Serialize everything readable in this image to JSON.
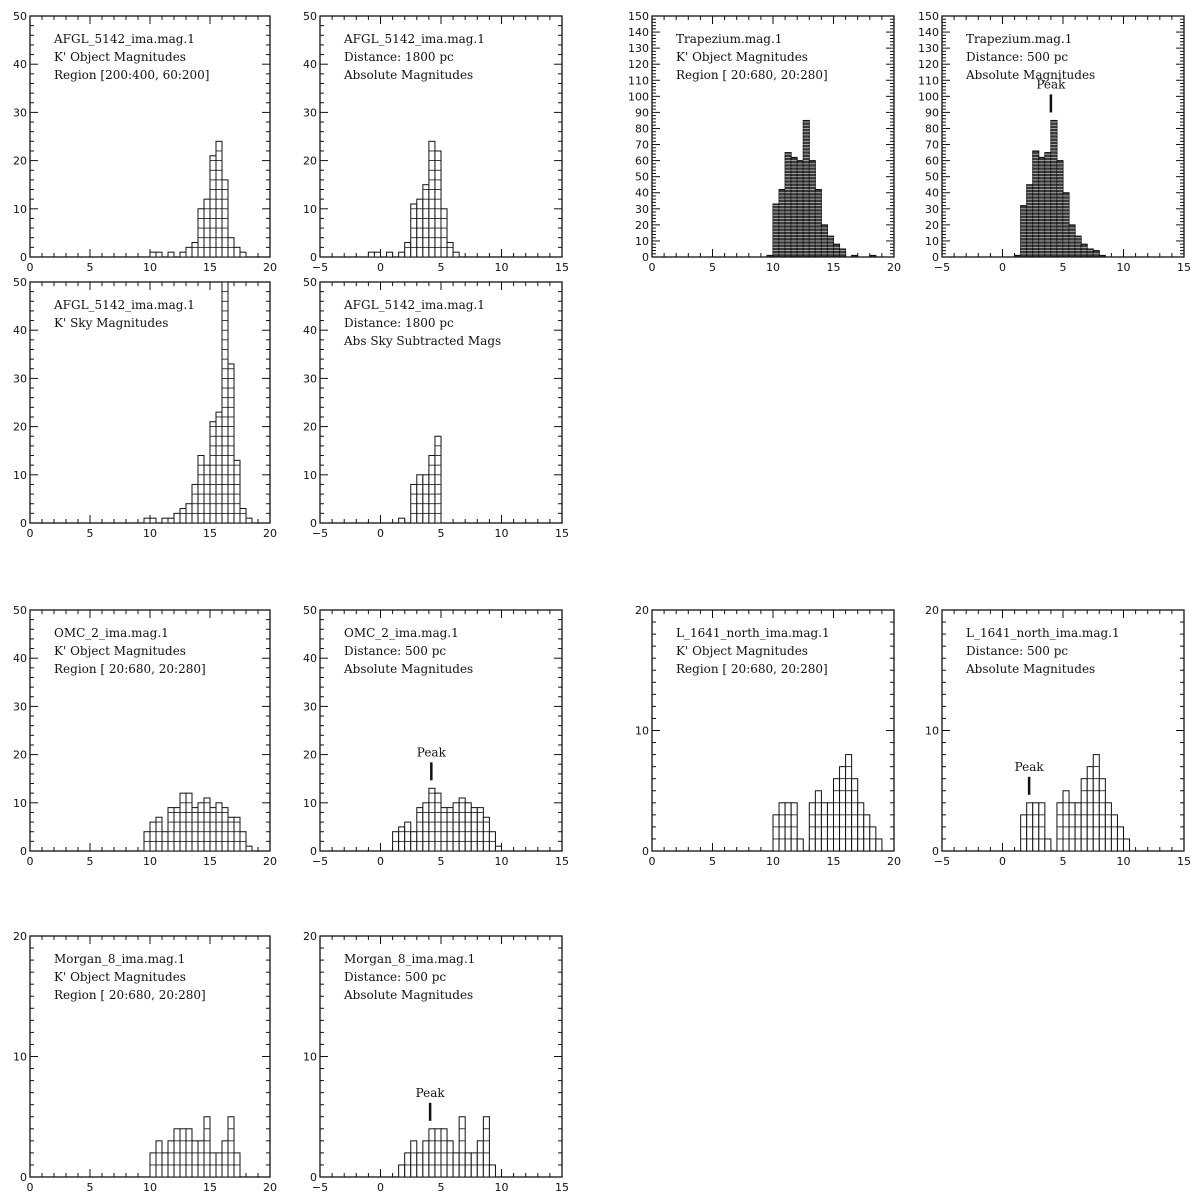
{
  "chart_data": [
    {
      "type": "bar",
      "lines": [
        "AFGL_5142_ima.mag.1",
        "K' Object Magnitudes",
        "Region [200:400, 60:200]"
      ],
      "xlim": [
        0,
        20
      ],
      "xticks": [
        0,
        5,
        10,
        15,
        20
      ],
      "ylim": [
        0,
        50
      ],
      "yticks": [
        0,
        10,
        20,
        30,
        40,
        50
      ],
      "cell": 2,
      "bins": [
        [
          10,
          1
        ],
        [
          10.5,
          1
        ],
        [
          11.5,
          1
        ],
        [
          12.5,
          1
        ],
        [
          13,
          2
        ],
        [
          13.5,
          3
        ],
        [
          14,
          10
        ],
        [
          14.5,
          12
        ],
        [
          15,
          21
        ],
        [
          15.5,
          24
        ],
        [
          16,
          16
        ],
        [
          16.5,
          4
        ],
        [
          17,
          2
        ],
        [
          17.5,
          1
        ]
      ]
    },
    {
      "type": "bar",
      "lines": [
        "AFGL_5142_ima.mag.1",
        "Distance: 1800  pc",
        "Absolute Magnitudes"
      ],
      "xlim": [
        -5,
        15
      ],
      "xticks": [
        -5,
        0,
        5,
        10,
        15
      ],
      "ylim": [
        0,
        50
      ],
      "yticks": [
        0,
        10,
        20,
        30,
        40,
        50
      ],
      "cell": 2,
      "bins": [
        [
          -1,
          1
        ],
        [
          -0.5,
          1
        ],
        [
          0.5,
          1
        ],
        [
          1.5,
          1
        ],
        [
          2,
          3
        ],
        [
          2.5,
          11
        ],
        [
          3,
          12
        ],
        [
          3.5,
          15
        ],
        [
          4,
          24
        ],
        [
          4.5,
          22
        ],
        [
          5,
          10
        ],
        [
          5.5,
          3
        ],
        [
          6,
          1
        ]
      ]
    },
    {
      "type": "bar",
      "lines": [
        "Trapezium.mag.1",
        "K' Object Magnitudes",
        "Region [ 20:680, 20:280]"
      ],
      "xlim": [
        0,
        20
      ],
      "xticks": [
        0,
        5,
        10,
        15,
        20
      ],
      "ylim": [
        0,
        150
      ],
      "yticks": [
        0,
        10,
        20,
        30,
        40,
        50,
        60,
        70,
        80,
        90,
        100,
        110,
        120,
        130,
        140,
        150
      ],
      "cell": 2,
      "dense": true,
      "bins": [
        [
          9.5,
          1
        ],
        [
          10,
          33
        ],
        [
          10.5,
          42
        ],
        [
          11,
          65
        ],
        [
          11.5,
          62
        ],
        [
          12,
          60
        ],
        [
          12.5,
          85
        ],
        [
          13,
          60
        ],
        [
          13.5,
          42
        ],
        [
          14,
          20
        ],
        [
          14.5,
          13
        ],
        [
          15,
          8
        ],
        [
          15.5,
          5
        ],
        [
          16.5,
          1
        ],
        [
          18,
          1
        ]
      ]
    },
    {
      "type": "bar",
      "lines": [
        "Trapezium.mag.1",
        "Distance: 500    pc",
        "Absolute Magnitudes"
      ],
      "xlim": [
        -5,
        15
      ],
      "xticks": [
        -5,
        0,
        5,
        10,
        15
      ],
      "ylim": [
        0,
        150
      ],
      "yticks": [
        0,
        10,
        20,
        30,
        40,
        50,
        60,
        70,
        80,
        90,
        100,
        110,
        120,
        130,
        140,
        150
      ],
      "cell": 2,
      "dense": true,
      "bins": [
        [
          1,
          1
        ],
        [
          1.5,
          32
        ],
        [
          2,
          45
        ],
        [
          2.5,
          66
        ],
        [
          3,
          62
        ],
        [
          3.5,
          65
        ],
        [
          4,
          85
        ],
        [
          4.5,
          60
        ],
        [
          5,
          40
        ],
        [
          5.5,
          20
        ],
        [
          6,
          13
        ],
        [
          6.5,
          8
        ],
        [
          7,
          5
        ],
        [
          7.5,
          4
        ],
        [
          8,
          1
        ]
      ],
      "peak": {
        "label": "Peak",
        "x": 4
      }
    },
    {
      "type": "bar",
      "lines": [
        "AFGL_5142_ima.mag.1",
        "K' Sky Magnitudes"
      ],
      "xlim": [
        0,
        20
      ],
      "xticks": [
        0,
        5,
        10,
        15,
        20
      ],
      "ylim": [
        0,
        50
      ],
      "yticks": [
        0,
        10,
        20,
        30,
        40,
        50
      ],
      "cell": 2,
      "bins": [
        [
          9.5,
          1
        ],
        [
          10,
          1
        ],
        [
          11,
          1
        ],
        [
          11.5,
          1
        ],
        [
          12,
          2
        ],
        [
          12.5,
          3
        ],
        [
          13,
          4
        ],
        [
          13.5,
          8
        ],
        [
          14,
          14
        ],
        [
          14.5,
          12
        ],
        [
          15,
          21
        ],
        [
          15.5,
          23
        ],
        [
          16,
          50
        ],
        [
          16.5,
          33
        ],
        [
          17,
          13
        ],
        [
          17.5,
          3
        ],
        [
          18,
          1
        ]
      ]
    },
    {
      "type": "bar",
      "lines": [
        "AFGL_5142_ima.mag.1",
        "Distance: 1800  pc",
        "Abs Sky Subtracted Mags"
      ],
      "xlim": [
        -5,
        15
      ],
      "xticks": [
        -5,
        0,
        5,
        10,
        15
      ],
      "ylim": [
        0,
        50
      ],
      "yticks": [
        0,
        10,
        20,
        30,
        40,
        50
      ],
      "cell": 2,
      "bins": [
        [
          1.5,
          1
        ],
        [
          2.5,
          8
        ],
        [
          3,
          10
        ],
        [
          3.5,
          10
        ],
        [
          4,
          14
        ],
        [
          4.5,
          18
        ]
      ]
    },
    {
      "type": "bar",
      "lines": [
        "OMC_2_ima.mag.1",
        "K' Object Magnitudes",
        "Region [ 20:680, 20:280]"
      ],
      "xlim": [
        0,
        20
      ],
      "xticks": [
        0,
        5,
        10,
        15,
        20
      ],
      "ylim": [
        0,
        50
      ],
      "yticks": [
        0,
        10,
        20,
        30,
        40,
        50
      ],
      "cell": 2,
      "bins": [
        [
          9.5,
          4
        ],
        [
          10,
          6
        ],
        [
          10.5,
          7
        ],
        [
          11,
          4
        ],
        [
          11.5,
          9
        ],
        [
          12,
          9
        ],
        [
          12.5,
          12
        ],
        [
          13,
          12
        ],
        [
          13.5,
          9
        ],
        [
          14,
          10
        ],
        [
          14.5,
          11
        ],
        [
          15,
          9
        ],
        [
          15.5,
          10
        ],
        [
          16,
          9
        ],
        [
          16.5,
          7
        ],
        [
          17,
          7
        ],
        [
          17.5,
          4
        ],
        [
          18,
          1
        ]
      ]
    },
    {
      "type": "bar",
      "lines": [
        "OMC_2_ima.mag.1",
        "Distance: 500    pc",
        "Absolute Magnitudes"
      ],
      "xlim": [
        -5,
        15
      ],
      "xticks": [
        -5,
        0,
        5,
        10,
        15
      ],
      "ylim": [
        0,
        50
      ],
      "yticks": [
        0,
        10,
        20,
        30,
        40,
        50
      ],
      "cell": 2,
      "bins": [
        [
          1,
          4
        ],
        [
          1.5,
          5
        ],
        [
          2,
          6
        ],
        [
          2.5,
          4
        ],
        [
          3,
          9
        ],
        [
          3.5,
          10
        ],
        [
          4,
          13
        ],
        [
          4.5,
          12
        ],
        [
          5,
          9
        ],
        [
          5.5,
          9
        ],
        [
          6,
          10
        ],
        [
          6.5,
          11
        ],
        [
          7,
          10
        ],
        [
          7.5,
          9
        ],
        [
          8,
          9
        ],
        [
          8.5,
          7
        ],
        [
          9,
          4
        ],
        [
          9.5,
          1
        ]
      ],
      "peak": {
        "label": "Peak",
        "x": 4.2
      }
    },
    {
      "type": "bar",
      "lines": [
        "L_1641_north_ima.mag.1",
        "K' Object Magnitudes",
        "Region [ 20:680, 20:280]"
      ],
      "xlim": [
        0,
        20
      ],
      "xticks": [
        0,
        5,
        10,
        15,
        20
      ],
      "ylim": [
        0,
        20
      ],
      "yticks": [
        0,
        10,
        20
      ],
      "cell": 1,
      "bins": [
        [
          10,
          3
        ],
        [
          10.5,
          4
        ],
        [
          11,
          4
        ],
        [
          11.5,
          4
        ],
        [
          12,
          1
        ],
        [
          13,
          4
        ],
        [
          13.5,
          5
        ],
        [
          14,
          4
        ],
        [
          14.5,
          4
        ],
        [
          15,
          6
        ],
        [
          15.5,
          7
        ],
        [
          16,
          8
        ],
        [
          16.5,
          6
        ],
        [
          17,
          4
        ],
        [
          17.5,
          3
        ],
        [
          18,
          2
        ],
        [
          18.5,
          1
        ]
      ]
    },
    {
      "type": "bar",
      "lines": [
        "L_1641_north_ima.mag.1",
        "Distance: 500    pc",
        "Absolute Magnitudes"
      ],
      "xlim": [
        -5,
        15
      ],
      "xticks": [
        -5,
        0,
        5,
        10,
        15
      ],
      "ylim": [
        0,
        20
      ],
      "yticks": [
        0,
        10,
        20
      ],
      "cell": 1,
      "bins": [
        [
          1.5,
          3
        ],
        [
          2,
          4
        ],
        [
          2.5,
          4
        ],
        [
          3,
          4
        ],
        [
          3.5,
          1
        ],
        [
          4.5,
          4
        ],
        [
          5,
          5
        ],
        [
          5.5,
          4
        ],
        [
          6,
          4
        ],
        [
          6.5,
          6
        ],
        [
          7,
          7
        ],
        [
          7.5,
          8
        ],
        [
          8,
          6
        ],
        [
          8.5,
          4
        ],
        [
          9,
          3
        ],
        [
          9.5,
          2
        ],
        [
          10,
          1
        ]
      ],
      "peak": {
        "label": "Peak",
        "x": 2.2
      }
    },
    {
      "type": "bar",
      "lines": [
        "Morgan_8_ima.mag.1",
        "K' Object Magnitudes",
        "Region [ 20:680, 20:280]"
      ],
      "xlim": [
        0,
        20
      ],
      "xticks": [
        0,
        5,
        10,
        15,
        20
      ],
      "ylim": [
        0,
        20
      ],
      "yticks": [
        0,
        10,
        20
      ],
      "cell": 1,
      "bins": [
        [
          10,
          2
        ],
        [
          10.5,
          3
        ],
        [
          11,
          2
        ],
        [
          11.5,
          3
        ],
        [
          12,
          4
        ],
        [
          12.5,
          4
        ],
        [
          13,
          4
        ],
        [
          13.5,
          3
        ],
        [
          14,
          3
        ],
        [
          14.5,
          5
        ],
        [
          15,
          2
        ],
        [
          15.5,
          2
        ],
        [
          16,
          3
        ],
        [
          16.5,
          5
        ],
        [
          17,
          2
        ]
      ]
    },
    {
      "type": "bar",
      "lines": [
        "Morgan_8_ima.mag.1",
        "Distance: 500    pc",
        "Absolute Magnitudes"
      ],
      "xlim": [
        -5,
        15
      ],
      "xticks": [
        -5,
        0,
        5,
        10,
        15
      ],
      "ylim": [
        0,
        20
      ],
      "yticks": [
        0,
        10,
        20
      ],
      "cell": 1,
      "bins": [
        [
          1.5,
          1
        ],
        [
          2,
          2
        ],
        [
          2.5,
          3
        ],
        [
          3,
          2
        ],
        [
          3.5,
          3
        ],
        [
          4,
          4
        ],
        [
          4.5,
          4
        ],
        [
          5,
          4
        ],
        [
          5.5,
          3
        ],
        [
          6,
          2
        ],
        [
          6.5,
          5
        ],
        [
          7,
          2
        ],
        [
          7.5,
          2
        ],
        [
          8,
          3
        ],
        [
          8.5,
          5
        ],
        [
          9,
          1
        ]
      ],
      "peak": {
        "label": "Peak",
        "x": 4.1
      }
    }
  ]
}
